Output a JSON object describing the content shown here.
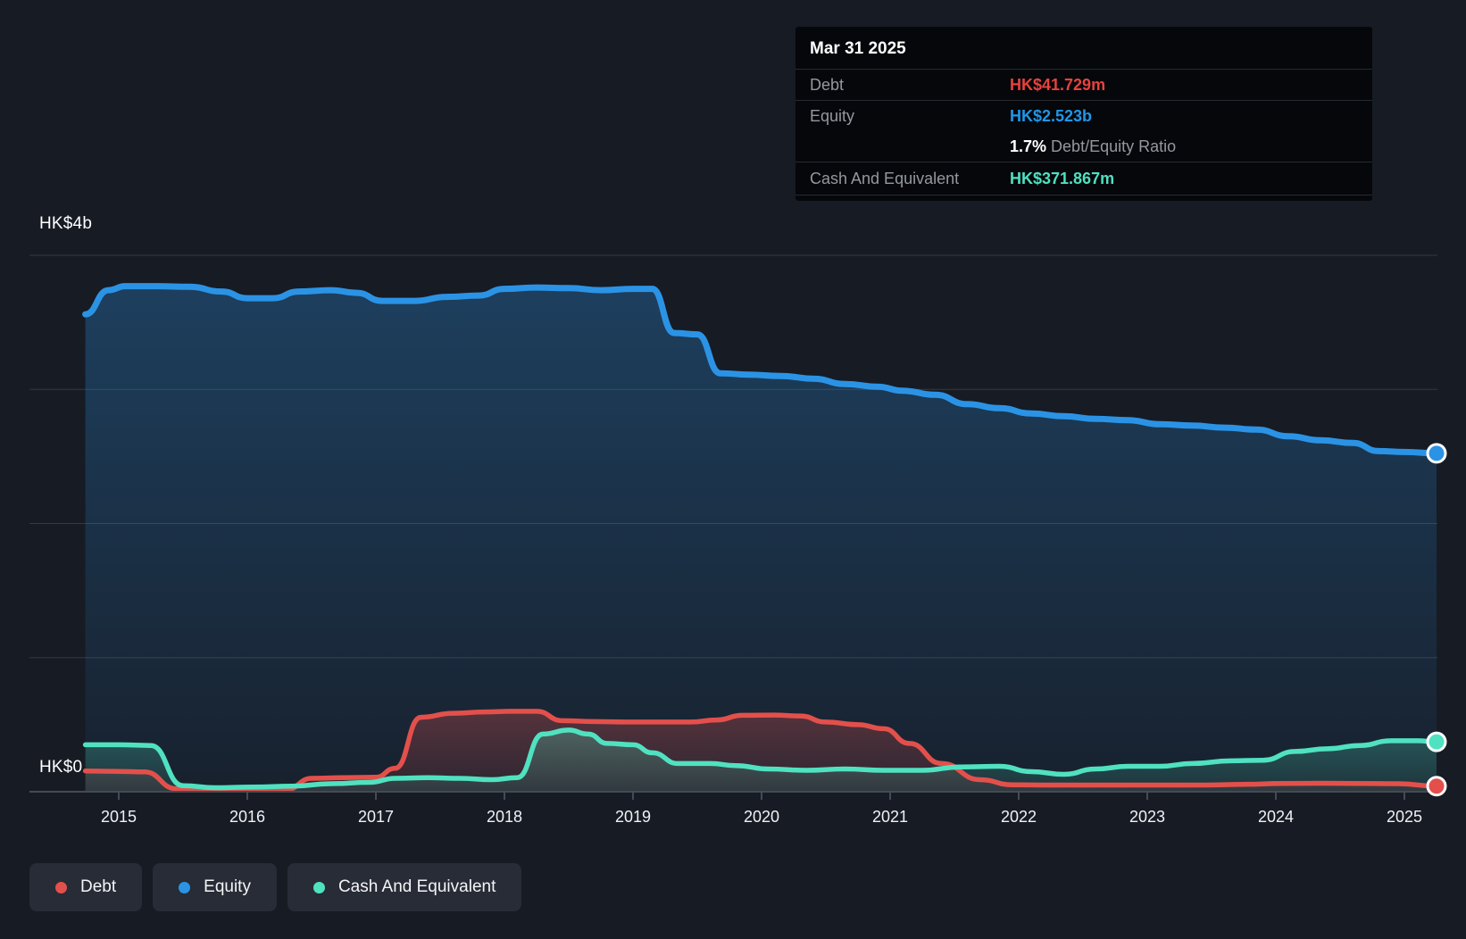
{
  "y_axis": {
    "top_label": "HK$4b",
    "bottom_label": "HK$0"
  },
  "tooltip": {
    "date": "Mar 31 2025",
    "debt_label": "Debt",
    "debt_value": "HK$41.729m",
    "equity_label": "Equity",
    "equity_value": "HK$2.523b",
    "ratio_value": "1.7%",
    "ratio_label": "Debt/Equity Ratio",
    "cash_label": "Cash And Equivalent",
    "cash_value": "HK$371.867m"
  },
  "legend": [
    {
      "label": "Debt",
      "color_key": "debt"
    },
    {
      "label": "Equity",
      "color_key": "equity"
    },
    {
      "label": "Cash And Equivalent",
      "color_key": "cash"
    }
  ],
  "colors": {
    "background": "#171b24",
    "debt": "#e3504b",
    "equity": "#2b93e5",
    "cash": "#50e2c0",
    "grid": "#343a45",
    "axis": "#454b56",
    "tooltip_bg": "#05070b",
    "legend_bg": "#272c36",
    "text_primary": "#ffffff",
    "text_secondary": "#94989e"
  },
  "chart_data": {
    "type": "area",
    "title": "Debt, Equity and Cash And Equivalent history",
    "y_unit": "HK$ billions",
    "ylim": [
      0,
      4
    ],
    "gridline_values": [
      1,
      2,
      3,
      4
    ],
    "x_axis": {
      "tick_years": [
        2015,
        2016,
        2017,
        2018,
        2019,
        2020,
        2021,
        2022,
        2023,
        2024,
        2025
      ]
    },
    "series": [
      {
        "name": "Equity",
        "key": "equity",
        "color": "#2b93e5",
        "points": [
          [
            2014.74,
            3.56
          ],
          [
            2014.92,
            3.74
          ],
          [
            2015.05,
            3.77
          ],
          [
            2015.3,
            3.77
          ],
          [
            2015.55,
            3.765
          ],
          [
            2015.8,
            3.73
          ],
          [
            2016.0,
            3.68
          ],
          [
            2016.2,
            3.68
          ],
          [
            2016.4,
            3.73
          ],
          [
            2016.65,
            3.74
          ],
          [
            2016.85,
            3.72
          ],
          [
            2017.05,
            3.66
          ],
          [
            2017.3,
            3.66
          ],
          [
            2017.55,
            3.69
          ],
          [
            2017.8,
            3.7
          ],
          [
            2018.0,
            3.75
          ],
          [
            2018.25,
            3.76
          ],
          [
            2018.5,
            3.755
          ],
          [
            2018.75,
            3.74
          ],
          [
            2019.0,
            3.75
          ],
          [
            2019.15,
            3.75
          ],
          [
            2019.32,
            3.42
          ],
          [
            2019.5,
            3.41
          ],
          [
            2019.68,
            3.12
          ],
          [
            2019.9,
            3.11
          ],
          [
            2020.15,
            3.1
          ],
          [
            2020.4,
            3.08
          ],
          [
            2020.65,
            3.04
          ],
          [
            2020.9,
            3.02
          ],
          [
            2021.1,
            2.99
          ],
          [
            2021.35,
            2.96
          ],
          [
            2021.6,
            2.89
          ],
          [
            2021.85,
            2.86
          ],
          [
            2022.1,
            2.82
          ],
          [
            2022.35,
            2.8
          ],
          [
            2022.6,
            2.78
          ],
          [
            2022.85,
            2.77
          ],
          [
            2023.1,
            2.74
          ],
          [
            2023.35,
            2.73
          ],
          [
            2023.6,
            2.715
          ],
          [
            2023.85,
            2.7
          ],
          [
            2024.1,
            2.65
          ],
          [
            2024.35,
            2.62
          ],
          [
            2024.6,
            2.6
          ],
          [
            2024.8,
            2.54
          ],
          [
            2025.0,
            2.533
          ],
          [
            2025.25,
            2.523
          ]
        ]
      },
      {
        "name": "Debt",
        "key": "debt",
        "color": "#e3504b",
        "points": [
          [
            2014.74,
            0.155
          ],
          [
            2015.0,
            0.152
          ],
          [
            2015.2,
            0.148
          ],
          [
            2015.45,
            0.022
          ],
          [
            2015.7,
            0.012
          ],
          [
            2016.0,
            0.012
          ],
          [
            2016.3,
            0.014
          ],
          [
            2016.5,
            0.1
          ],
          [
            2016.75,
            0.105
          ],
          [
            2017.0,
            0.108
          ],
          [
            2017.15,
            0.175
          ],
          [
            2017.35,
            0.555
          ],
          [
            2017.6,
            0.585
          ],
          [
            2017.85,
            0.595
          ],
          [
            2018.05,
            0.6
          ],
          [
            2018.25,
            0.6
          ],
          [
            2018.45,
            0.53
          ],
          [
            2018.7,
            0.523
          ],
          [
            2018.95,
            0.52
          ],
          [
            2019.2,
            0.52
          ],
          [
            2019.45,
            0.52
          ],
          [
            2019.65,
            0.535
          ],
          [
            2019.85,
            0.57
          ],
          [
            2020.1,
            0.572
          ],
          [
            2020.3,
            0.565
          ],
          [
            2020.5,
            0.52
          ],
          [
            2020.75,
            0.5
          ],
          [
            2020.95,
            0.47
          ],
          [
            2021.15,
            0.36
          ],
          [
            2021.4,
            0.21
          ],
          [
            2021.7,
            0.09
          ],
          [
            2021.95,
            0.052
          ],
          [
            2022.25,
            0.05
          ],
          [
            2022.55,
            0.05
          ],
          [
            2022.85,
            0.05
          ],
          [
            2023.15,
            0.05
          ],
          [
            2023.45,
            0.05
          ],
          [
            2023.75,
            0.055
          ],
          [
            2024.05,
            0.062
          ],
          [
            2024.35,
            0.063
          ],
          [
            2024.65,
            0.062
          ],
          [
            2024.95,
            0.06
          ],
          [
            2025.25,
            0.042
          ]
        ]
      },
      {
        "name": "Cash And Equivalent",
        "key": "cash",
        "color": "#50e2c0",
        "points": [
          [
            2014.74,
            0.35
          ],
          [
            2015.0,
            0.35
          ],
          [
            2015.25,
            0.345
          ],
          [
            2015.5,
            0.045
          ],
          [
            2015.75,
            0.03
          ],
          [
            2016.05,
            0.035
          ],
          [
            2016.35,
            0.042
          ],
          [
            2016.65,
            0.06
          ],
          [
            2016.95,
            0.07
          ],
          [
            2017.15,
            0.1
          ],
          [
            2017.4,
            0.105
          ],
          [
            2017.65,
            0.1
          ],
          [
            2017.9,
            0.09
          ],
          [
            2018.1,
            0.105
          ],
          [
            2018.3,
            0.43
          ],
          [
            2018.5,
            0.46
          ],
          [
            2018.65,
            0.43
          ],
          [
            2018.8,
            0.36
          ],
          [
            2019.0,
            0.35
          ],
          [
            2019.15,
            0.29
          ],
          [
            2019.35,
            0.21
          ],
          [
            2019.6,
            0.21
          ],
          [
            2019.8,
            0.195
          ],
          [
            2020.05,
            0.17
          ],
          [
            2020.35,
            0.16
          ],
          [
            2020.65,
            0.17
          ],
          [
            2020.95,
            0.16
          ],
          [
            2021.25,
            0.16
          ],
          [
            2021.55,
            0.185
          ],
          [
            2021.85,
            0.19
          ],
          [
            2022.1,
            0.15
          ],
          [
            2022.35,
            0.13
          ],
          [
            2022.6,
            0.17
          ],
          [
            2022.85,
            0.19
          ],
          [
            2023.1,
            0.19
          ],
          [
            2023.35,
            0.21
          ],
          [
            2023.65,
            0.23
          ],
          [
            2023.9,
            0.235
          ],
          [
            2024.15,
            0.3
          ],
          [
            2024.4,
            0.32
          ],
          [
            2024.65,
            0.345
          ],
          [
            2024.9,
            0.38
          ],
          [
            2025.1,
            0.38
          ],
          [
            2025.25,
            0.372
          ]
        ]
      }
    ]
  }
}
